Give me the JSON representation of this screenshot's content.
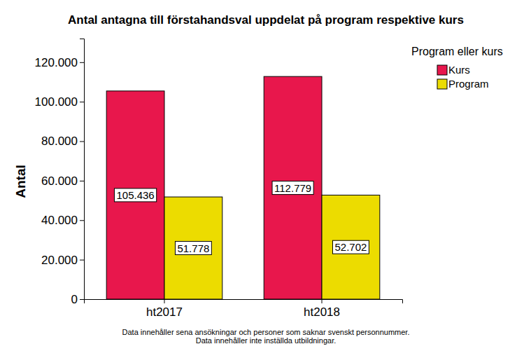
{
  "chart_data": {
    "type": "bar",
    "title": "Antal antagna till förstahandsval uppdelat på program respektive kurs",
    "y_label": "Antal",
    "legend_title": "Program eller kurs",
    "legend": "upper right",
    "annotations": [
      "Data innehåller sena ansökningar och personer som saknar svenskt personnummer.",
      "Data innehåller inte inställda utbildningar."
    ],
    "categories": [
      "ht2017",
      "ht2018"
    ],
    "series": [
      {
        "name": "Kurs",
        "color": "#e8174c",
        "values": [
          105436,
          112779
        ],
        "value_labels": [
          "105.436",
          "112.779"
        ]
      },
      {
        "name": "Program",
        "color": "#ecdc00",
        "values": [
          51778,
          52702
        ],
        "value_labels": [
          "51.778",
          "52.702"
        ]
      }
    ],
    "ylim": [
      0,
      132000
    ],
    "yticks": [
      0,
      {
        "value": 20000,
        "label": "20.000"
      },
      {
        "value": 40000,
        "label": "40.000"
      },
      {
        "value": 60000,
        "label": "60.000"
      },
      {
        "value": 80000,
        "label": "80.000"
      },
      {
        "value": 100000,
        "label": "100.000"
      },
      {
        "value": 120000,
        "label": "120.000"
      }
    ],
    "grid": false,
    "data_labels": true
  }
}
